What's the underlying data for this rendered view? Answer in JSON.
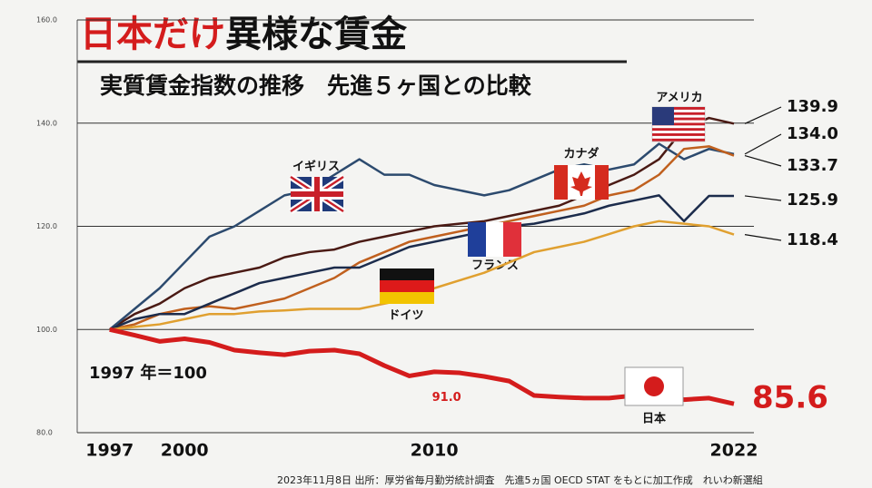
{
  "chart_data": {
    "type": "line",
    "title": [
      "日本だけ",
      "異様な賃金"
    ],
    "subtitle": "実質賃金指数の推移　先進５ヶ国との比較",
    "annotation": "1997 年＝100",
    "footnote": "2023年11月8日 出所：厚労省毎月勤労統計調査　先進5ヵ国 OECD STAT をもとに加工作成　れいわ新選組",
    "x": [
      1997,
      1998,
      1999,
      2000,
      2001,
      2002,
      2003,
      2004,
      2005,
      2006,
      2007,
      2008,
      2009,
      2010,
      2011,
      2012,
      2013,
      2014,
      2015,
      2016,
      2017,
      2018,
      2019,
      2020,
      2021,
      2022
    ],
    "xlim": [
      1995.7,
      2022.8
    ],
    "xticks": [
      1997,
      2000,
      2010,
      2022
    ],
    "ylim": [
      80,
      160
    ],
    "yticks": [
      {
        "value": 80,
        "label": "80.0"
      },
      {
        "value": 100,
        "label": "100.0"
      },
      {
        "value": 120,
        "label": "120.0"
      },
      {
        "value": 140,
        "label": "140.0"
      },
      {
        "value": 160,
        "label": "160.0"
      }
    ],
    "grid": true,
    "series": [
      {
        "name": "アメリカ",
        "color": "#4a1a14",
        "values": [
          100,
          103,
          105,
          108,
          110,
          111,
          112,
          114,
          115,
          115.5,
          117,
          118,
          119,
          120,
          120.5,
          121,
          122,
          123,
          124,
          126,
          128,
          130,
          133,
          139,
          141,
          139.9
        ],
        "value_labels": [
          null,
          null,
          null,
          null,
          null,
          null,
          null,
          null,
          null,
          null,
          null,
          null,
          null,
          null,
          null,
          null,
          null,
          null,
          null,
          null,
          null,
          null,
          null,
          null,
          null,
          "139.9"
        ]
      },
      {
        "name": "イギリス",
        "color": "#2c4a6e",
        "values": [
          100,
          104,
          108,
          113,
          118,
          120,
          123,
          126,
          127,
          130,
          133,
          130,
          130,
          128,
          127,
          126,
          127,
          129,
          131,
          132,
          131,
          132,
          136,
          133,
          135,
          134.0
        ],
        "value_labels": [
          null,
          null,
          null,
          null,
          null,
          null,
          null,
          null,
          null,
          null,
          null,
          null,
          null,
          null,
          null,
          null,
          null,
          null,
          null,
          null,
          null,
          null,
          null,
          null,
          null,
          "134.0"
        ]
      },
      {
        "name": "カナダ",
        "color": "#c0601e",
        "values": [
          100,
          101,
          103,
          104,
          104.5,
          104,
          105,
          106,
          108,
          110,
          113,
          115,
          117,
          118,
          119,
          120,
          121,
          122,
          123,
          124,
          126,
          127,
          130,
          135,
          135.5,
          133.7
        ],
        "value_labels": [
          null,
          null,
          null,
          null,
          null,
          null,
          null,
          null,
          null,
          null,
          null,
          null,
          null,
          null,
          null,
          null,
          null,
          null,
          null,
          null,
          null,
          null,
          null,
          null,
          null,
          "133.7"
        ]
      },
      {
        "name": "フランス",
        "color": "#1c2c4c",
        "values": [
          100,
          102,
          103,
          103,
          105,
          107,
          109,
          110,
          111,
          112,
          112,
          114,
          116,
          117,
          118,
          119,
          120,
          120.5,
          121.5,
          122.5,
          124,
          125,
          126,
          121,
          125.9,
          125.9
        ],
        "value_labels": [
          null,
          null,
          null,
          null,
          null,
          null,
          null,
          null,
          null,
          null,
          null,
          null,
          null,
          null,
          null,
          null,
          null,
          null,
          null,
          null,
          null,
          null,
          null,
          null,
          null,
          "125.9"
        ]
      },
      {
        "name": "ドイツ",
        "color": "#e0a030",
        "values": [
          100,
          100.5,
          101,
          102,
          103,
          103,
          103.5,
          103.7,
          104,
          104,
          104,
          105,
          106,
          108,
          109.5,
          111,
          113,
          115,
          116,
          117,
          118.5,
          120,
          121,
          120.5,
          120,
          118.4
        ],
        "value_labels": [
          null,
          null,
          null,
          null,
          null,
          null,
          null,
          null,
          null,
          null,
          null,
          null,
          null,
          null,
          null,
          null,
          null,
          null,
          null,
          null,
          null,
          null,
          null,
          null,
          null,
          "118.4"
        ]
      },
      {
        "name": "日本",
        "color": "#d41c1c",
        "values": [
          100,
          98.9,
          97.7,
          98.2,
          97.5,
          96,
          95.5,
          95.1,
          95.8,
          96,
          95.3,
          93,
          91,
          91.8,
          91.6,
          90.9,
          90,
          87.2,
          86.9,
          86.7,
          86.7,
          87.2,
          87.5,
          86.4,
          86.7,
          85.6
        ],
        "value_labels": [
          null,
          null,
          null,
          null,
          null,
          null,
          null,
          null,
          null,
          null,
          null,
          null,
          "91.0",
          null,
          null,
          null,
          null,
          null,
          null,
          null,
          null,
          null,
          null,
          null,
          null,
          "85.6"
        ]
      }
    ]
  }
}
